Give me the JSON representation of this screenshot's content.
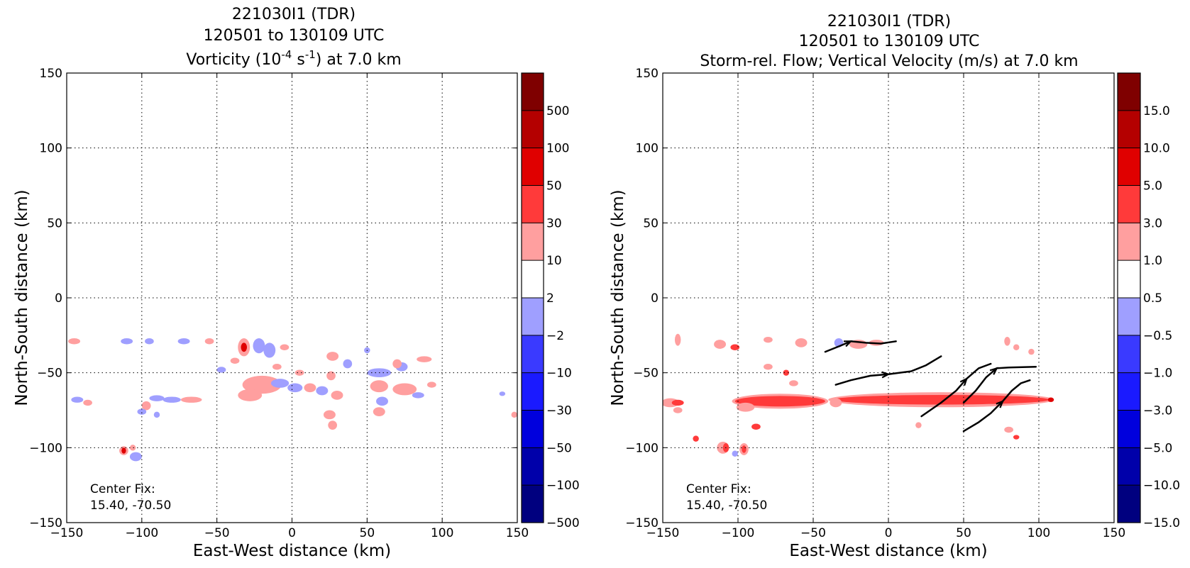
{
  "chart_data": [
    {
      "type": "heatmap",
      "title_lines": [
        "221030I1 (TDR)",
        "120501 to 130109 UTC"
      ],
      "title_line3": {
        "prefix": "Vorticity (10",
        "sup1": "-4",
        "mid": " s",
        "sup2": "-1",
        "suffix": ") at 7.0 km"
      },
      "xlabel": "East-West distance (km)",
      "ylabel": "North-South distance (km)",
      "xlim": [
        -150,
        150
      ],
      "ylim": [
        -150,
        150
      ],
      "xticks": [
        "−150",
        "−100",
        "−50",
        "0",
        "50",
        "100",
        "150"
      ],
      "yticks": [
        "−150",
        "−100",
        "−50",
        "0",
        "50",
        "100",
        "150"
      ],
      "grid": true,
      "annotation_lines": [
        "Center Fix:",
        "15.40, -70.50"
      ],
      "colorbar": {
        "levels": [
          "−500",
          "−100",
          "−50",
          "−30",
          "−10",
          "−2",
          "2",
          "10",
          "30",
          "50",
          "100",
          "500"
        ],
        "colors": [
          "#00007f",
          "#0000aa",
          "#0000dd",
          "#1a1aff",
          "#3a3aff",
          "#9f9fff",
          "#ffffff",
          "#ff9f9f",
          "#ff3a3a",
          "#e00000",
          "#b40000",
          "#7f0000"
        ]
      },
      "blobs": [
        {
          "x": -145,
          "y": -29,
          "rx": 4,
          "ry": 2,
          "level": "pos-light"
        },
        {
          "x": -110,
          "y": -29,
          "rx": 4,
          "ry": 2,
          "level": "neg-light"
        },
        {
          "x": -95,
          "y": -29,
          "rx": 3,
          "ry": 2,
          "level": "neg-light"
        },
        {
          "x": -72,
          "y": -29,
          "rx": 4,
          "ry": 2,
          "level": "neg-light"
        },
        {
          "x": -55,
          "y": -29,
          "rx": 3,
          "ry": 2,
          "level": "pos-light"
        },
        {
          "x": -32,
          "y": -33,
          "rx": 4,
          "ry": 6,
          "level": "pos-light"
        },
        {
          "x": -32,
          "y": -33,
          "rx": 2,
          "ry": 3,
          "level": "pos-strong"
        },
        {
          "x": -22,
          "y": -32,
          "rx": 4,
          "ry": 5,
          "level": "neg-light"
        },
        {
          "x": -15,
          "y": -35,
          "rx": 4,
          "ry": 5,
          "level": "neg-light"
        },
        {
          "x": -38,
          "y": -42,
          "rx": 3,
          "ry": 2,
          "level": "pos-light"
        },
        {
          "x": -5,
          "y": -33,
          "rx": 3,
          "ry": 2,
          "level": "pos-light"
        },
        {
          "x": -10,
          "y": -46,
          "rx": 3,
          "ry": 2,
          "level": "pos-light"
        },
        {
          "x": -47,
          "y": -48,
          "rx": 3,
          "ry": 2,
          "level": "neg-light"
        },
        {
          "x": 27,
          "y": -39,
          "rx": 4,
          "ry": 3,
          "level": "pos-light"
        },
        {
          "x": 37,
          "y": -44,
          "rx": 3,
          "ry": 3,
          "level": "neg-light"
        },
        {
          "x": 26,
          "y": -52,
          "rx": 3,
          "ry": 3,
          "level": "pos-light"
        },
        {
          "x": 5,
          "y": -50,
          "rx": 3,
          "ry": 2,
          "level": "pos-light"
        },
        {
          "x": -20,
          "y": -58,
          "rx": 13,
          "ry": 6,
          "level": "pos-light"
        },
        {
          "x": -28,
          "y": -65,
          "rx": 8,
          "ry": 4,
          "level": "pos-light"
        },
        {
          "x": -8,
          "y": -57,
          "rx": 6,
          "ry": 3,
          "level": "neg-light"
        },
        {
          "x": 2,
          "y": -60,
          "rx": 5,
          "ry": 3,
          "level": "neg-light"
        },
        {
          "x": 20,
          "y": -62,
          "rx": 4,
          "ry": 3,
          "level": "neg-light"
        },
        {
          "x": 12,
          "y": -60,
          "rx": 4,
          "ry": 3,
          "level": "pos-light"
        },
        {
          "x": 30,
          "y": -65,
          "rx": 4,
          "ry": 3,
          "level": "pos-light"
        },
        {
          "x": 58,
          "y": -50,
          "rx": 8,
          "ry": 3,
          "level": "neg-light"
        },
        {
          "x": 73,
          "y": -46,
          "rx": 4,
          "ry": 3,
          "level": "neg-light"
        },
        {
          "x": 88,
          "y": -41,
          "rx": 5,
          "ry": 2,
          "level": "pos-light"
        },
        {
          "x": 70,
          "y": -44,
          "rx": 3,
          "ry": 3,
          "level": "pos-light"
        },
        {
          "x": 58,
          "y": -59,
          "rx": 6,
          "ry": 4,
          "level": "pos-light"
        },
        {
          "x": 75,
          "y": -61,
          "rx": 8,
          "ry": 4,
          "level": "pos-light"
        },
        {
          "x": 60,
          "y": -69,
          "rx": 4,
          "ry": 3,
          "level": "neg-light"
        },
        {
          "x": 58,
          "y": -76,
          "rx": 4,
          "ry": 3,
          "level": "pos-light"
        },
        {
          "x": 84,
          "y": -65,
          "rx": 4,
          "ry": 2,
          "level": "neg-light"
        },
        {
          "x": 93,
          "y": -58,
          "rx": 3,
          "ry": 2,
          "level": "pos-light"
        },
        {
          "x": 25,
          "y": -78,
          "rx": 4,
          "ry": 3,
          "level": "pos-light"
        },
        {
          "x": 27,
          "y": -85,
          "rx": 3,
          "ry": 3,
          "level": "pos-light"
        },
        {
          "x": -143,
          "y": -68,
          "rx": 4,
          "ry": 2,
          "level": "neg-light"
        },
        {
          "x": -136,
          "y": -70,
          "rx": 3,
          "ry": 2,
          "level": "pos-light"
        },
        {
          "x": -90,
          "y": -67,
          "rx": 5,
          "ry": 2,
          "level": "neg-light"
        },
        {
          "x": -80,
          "y": -68,
          "rx": 6,
          "ry": 2,
          "level": "neg-light"
        },
        {
          "x": -67,
          "y": -68,
          "rx": 7,
          "ry": 2,
          "level": "pos-light"
        },
        {
          "x": -97,
          "y": -72,
          "rx": 3,
          "ry": 3,
          "level": "pos-light"
        },
        {
          "x": -100,
          "y": -76,
          "rx": 3,
          "ry": 2,
          "level": "neg-light"
        },
        {
          "x": -90,
          "y": -78,
          "rx": 2,
          "ry": 2,
          "level": "neg-light"
        },
        {
          "x": -112,
          "y": -102,
          "rx": 3,
          "ry": 3,
          "level": "pos-light"
        },
        {
          "x": -112,
          "y": -102,
          "rx": 1.5,
          "ry": 2,
          "level": "pos-strong"
        },
        {
          "x": -104,
          "y": -106,
          "rx": 4,
          "ry": 3,
          "level": "neg-light"
        },
        {
          "x": -106,
          "y": -100,
          "rx": 2,
          "ry": 2,
          "level": "pos-light"
        },
        {
          "x": 140,
          "y": -64,
          "rx": 2,
          "ry": 1.5,
          "level": "neg-light"
        },
        {
          "x": 148,
          "y": -78,
          "rx": 2,
          "ry": 2,
          "level": "pos-light"
        },
        {
          "x": 50,
          "y": -35,
          "rx": 2,
          "ry": 2,
          "level": "neg-light"
        }
      ]
    },
    {
      "type": "heatmap",
      "title_lines": [
        "221030I1 (TDR)",
        "120501 to 130109 UTC",
        "Storm-rel. Flow; Vertical Velocity (m/s) at 7.0 km"
      ],
      "xlabel": "East-West distance (km)",
      "ylabel": "North-South distance (km)",
      "xlim": [
        -150,
        150
      ],
      "ylim": [
        -150,
        150
      ],
      "xticks": [
        "−150",
        "−100",
        "−50",
        "0",
        "50",
        "100",
        "150"
      ],
      "yticks": [
        "−150",
        "−100",
        "−50",
        "0",
        "50",
        "100",
        "150"
      ],
      "grid": true,
      "annotation_lines": [
        "Center Fix:",
        "15.40, -70.50"
      ],
      "colorbar": {
        "levels": [
          "−15.0",
          "−10.0",
          "−5.0",
          "−3.0",
          "−1.0",
          "−0.5",
          "0.5",
          "1.0",
          "3.0",
          "5.0",
          "10.0",
          "15.0"
        ],
        "colors": [
          "#00007f",
          "#0000aa",
          "#0000dd",
          "#1a1aff",
          "#3a3aff",
          "#9f9fff",
          "#ffffff",
          "#ff9f9f",
          "#ff3a3a",
          "#e00000",
          "#b40000",
          "#7f0000"
        ]
      },
      "blobs": [
        {
          "x": -145,
          "y": -70,
          "rx": 6,
          "ry": 3,
          "level": "pos-light"
        },
        {
          "x": -140,
          "y": -70,
          "rx": 4,
          "ry": 2,
          "level": "pos-mid"
        },
        {
          "x": -140,
          "y": -75,
          "rx": 3,
          "ry": 2,
          "level": "pos-light"
        },
        {
          "x": -72,
          "y": -69,
          "rx": 32,
          "ry": 5,
          "level": "pos-light"
        },
        {
          "x": -72,
          "y": -69,
          "rx": 30,
          "ry": 3.5,
          "level": "pos-mid"
        },
        {
          "x": -95,
          "y": -73,
          "rx": 6,
          "ry": 3,
          "level": "pos-light"
        },
        {
          "x": 35,
          "y": -68,
          "rx": 75,
          "ry": 5,
          "level": "pos-light"
        },
        {
          "x": 35,
          "y": -68,
          "rx": 72,
          "ry": 3.2,
          "level": "pos-mid"
        },
        {
          "x": 108,
          "y": -68,
          "rx": 2,
          "ry": 1.5,
          "level": "pos-strong"
        },
        {
          "x": -35,
          "y": -70,
          "rx": 4,
          "ry": 3,
          "level": "pos-light"
        },
        {
          "x": -88,
          "y": -86,
          "rx": 3,
          "ry": 2,
          "level": "pos-mid"
        },
        {
          "x": -110,
          "y": -100,
          "rx": 4,
          "ry": 4,
          "level": "pos-light"
        },
        {
          "x": -108,
          "y": -100,
          "rx": 2,
          "ry": 3,
          "level": "pos-mid"
        },
        {
          "x": -96,
          "y": -101,
          "rx": 3,
          "ry": 4,
          "level": "pos-light"
        },
        {
          "x": -96,
          "y": -101,
          "rx": 1.5,
          "ry": 2.5,
          "level": "pos-mid"
        },
        {
          "x": -102,
          "y": -104,
          "rx": 2,
          "ry": 2,
          "level": "neg-light"
        },
        {
          "x": -128,
          "y": -94,
          "rx": 2,
          "ry": 2,
          "level": "pos-mid"
        },
        {
          "x": -140,
          "y": -28,
          "rx": 2,
          "ry": 4,
          "level": "pos-light"
        },
        {
          "x": -112,
          "y": -31,
          "rx": 4,
          "ry": 3,
          "level": "pos-light"
        },
        {
          "x": -102,
          "y": -33,
          "rx": 3,
          "ry": 2,
          "level": "pos-mid"
        },
        {
          "x": -80,
          "y": -28,
          "rx": 3,
          "ry": 2,
          "level": "pos-light"
        },
        {
          "x": -58,
          "y": -30,
          "rx": 4,
          "ry": 3,
          "level": "pos-light"
        },
        {
          "x": -33,
          "y": -30,
          "rx": 3,
          "ry": 3,
          "level": "neg-light"
        },
        {
          "x": -20,
          "y": -31,
          "rx": 6,
          "ry": 3,
          "level": "pos-light"
        },
        {
          "x": -8,
          "y": -30,
          "rx": 5,
          "ry": 2,
          "level": "pos-light"
        },
        {
          "x": -80,
          "y": -46,
          "rx": 3,
          "ry": 2,
          "level": "pos-light"
        },
        {
          "x": -68,
          "y": -50,
          "rx": 2,
          "ry": 2,
          "level": "pos-mid"
        },
        {
          "x": -63,
          "y": -57,
          "rx": 3,
          "ry": 2,
          "level": "pos-light"
        },
        {
          "x": 79,
          "y": -29,
          "rx": 2,
          "ry": 3,
          "level": "pos-light"
        },
        {
          "x": 85,
          "y": -33,
          "rx": 2,
          "ry": 2,
          "level": "pos-light"
        },
        {
          "x": 95,
          "y": -36,
          "rx": 2,
          "ry": 2,
          "level": "pos-light"
        },
        {
          "x": 80,
          "y": -88,
          "rx": 3,
          "ry": 2,
          "level": "pos-light"
        },
        {
          "x": 85,
          "y": -93,
          "rx": 2,
          "ry": 1.5,
          "level": "pos-mid"
        },
        {
          "x": 20,
          "y": -85,
          "rx": 2,
          "ry": 2,
          "level": "pos-light"
        }
      ],
      "streamlines": [
        [
          [
            -42,
            -36
          ],
          [
            -32,
            -32
          ],
          [
            -25,
            -29
          ],
          [
            -15,
            -30
          ],
          [
            -5,
            -30.5
          ],
          [
            5,
            -29
          ]
        ],
        [
          [
            -35,
            -58
          ],
          [
            -25,
            -55
          ],
          [
            -12,
            -52
          ],
          [
            0,
            -51
          ],
          [
            15,
            -49
          ],
          [
            25,
            -45
          ],
          [
            35,
            -39
          ]
        ],
        [
          [
            22,
            -79
          ],
          [
            35,
            -70
          ],
          [
            45,
            -62
          ],
          [
            52,
            -54
          ],
          [
            60,
            -47
          ],
          [
            68,
            -44
          ]
        ],
        [
          [
            50,
            -70
          ],
          [
            58,
            -62
          ],
          [
            65,
            -53
          ],
          [
            72,
            -47
          ],
          [
            80,
            -46.5
          ],
          [
            98,
            -46
          ]
        ],
        [
          [
            50,
            -89
          ],
          [
            60,
            -83
          ],
          [
            68,
            -77
          ],
          [
            76,
            -69
          ],
          [
            82,
            -62
          ],
          [
            88,
            -57
          ],
          [
            94,
            -55
          ]
        ]
      ],
      "arrow_at": [
        2,
        3,
        3,
        3,
        3
      ]
    }
  ]
}
